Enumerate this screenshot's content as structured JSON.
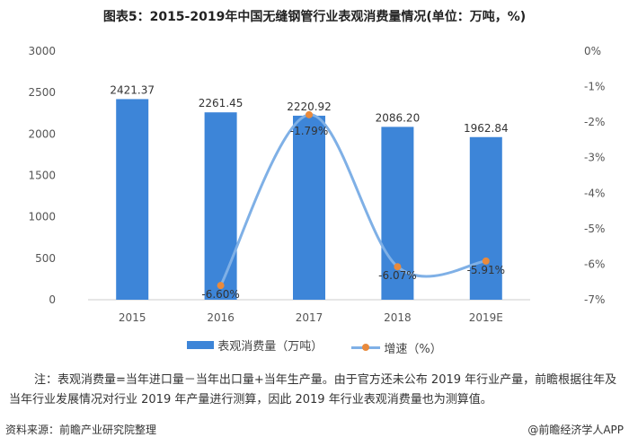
{
  "title": "图表5：2015-2019年中国无缝钢管行业表观消费量情况(单位：万吨，%)",
  "chart_data": {
    "type": "bar+line",
    "title": "图表5：2015-2019年中国无缝钢管行业表观消费量情况(单位：万吨，%)",
    "categories": [
      "2015",
      "2016",
      "2017",
      "2018",
      "2019E"
    ],
    "series": [
      {
        "name": "表观消费量（万吨）",
        "type": "bar",
        "axis": "left",
        "values": [
          2421.37,
          2261.45,
          2220.92,
          2086.2,
          1962.84
        ],
        "labels": [
          "2421.37",
          "2261.45",
          "2220.92",
          "2086.20",
          "1962.84"
        ],
        "color": "#3d85d8"
      },
      {
        "name": "增速（%）",
        "type": "line",
        "axis": "right",
        "smooth": true,
        "values": [
          null,
          -6.6,
          -1.79,
          -6.07,
          -5.91
        ],
        "labels": [
          "",
          "-6.60%",
          "-1.79%",
          "-6.07%",
          "-5.91%"
        ],
        "color": "#7fb0e6",
        "marker_color": "#e98a3c"
      }
    ],
    "left_axis": {
      "ylim": [
        0,
        3000
      ],
      "ticks": [
        "0",
        "500",
        "1000",
        "1500",
        "2000",
        "2500",
        "3000"
      ]
    },
    "right_axis": {
      "ylim": [
        -7,
        0
      ],
      "ticks": [
        "-7%",
        "-6%",
        "-5%",
        "-4%",
        "-3%",
        "-2%",
        "-1%",
        "0%"
      ]
    },
    "grid": false,
    "legend": "bottom"
  },
  "note": "注：表观消费量=当年进口量－当年出口量+当年生产量。由于官方还未公布 2019 年行业产量，前瞻根据往年及当年行业发展情况对行业 2019 年产量进行测算，因此 2019 年行业表观消费量也为测算值。",
  "source": "资料来源：前瞻产业研究院整理",
  "credit": "@前瞻经济学人APP"
}
